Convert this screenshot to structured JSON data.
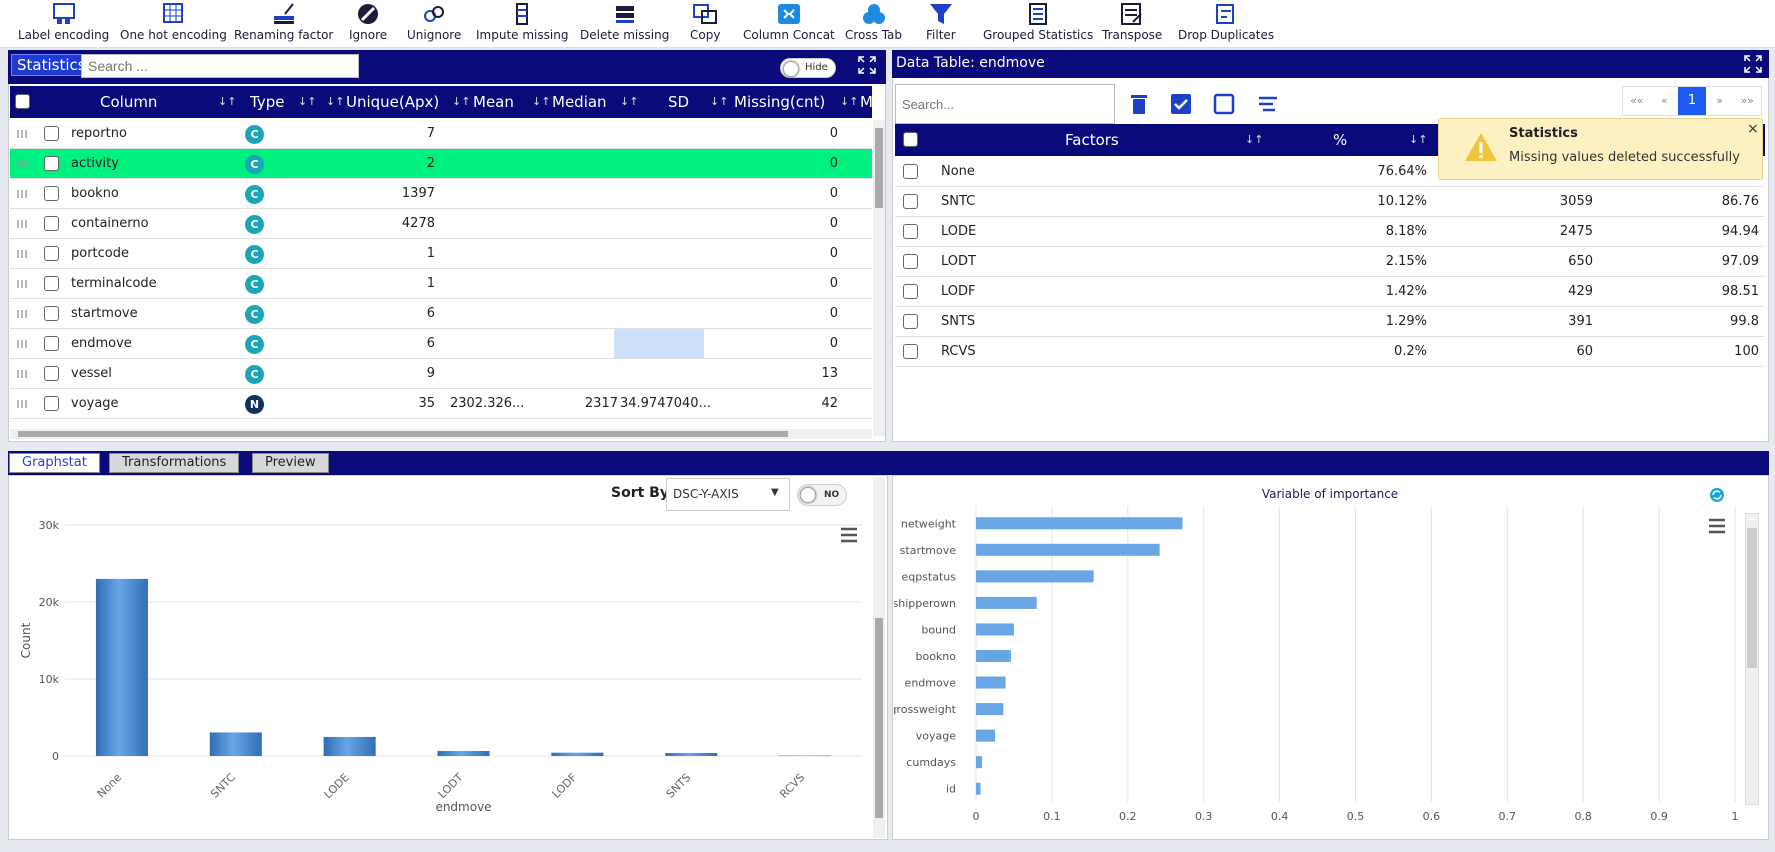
{
  "toolbar": {
    "buttons": [
      {
        "label": "Label encoding",
        "icon": "label-encoding-icon"
      },
      {
        "label": "One hot encoding",
        "icon": "one-hot-icon"
      },
      {
        "label": "Renaming factor",
        "icon": "rename-icon"
      },
      {
        "label": "Ignore",
        "icon": "ignore-icon"
      },
      {
        "label": "Unignore",
        "icon": "unignore-icon"
      },
      {
        "label": "Impute missing",
        "icon": "impute-icon"
      },
      {
        "label": "Delete missing",
        "icon": "delete-missing-icon"
      },
      {
        "label": "Copy",
        "icon": "copy-icon"
      },
      {
        "label": "Column Concat",
        "icon": "concat-icon"
      },
      {
        "label": "Cross Tab",
        "icon": "crosstab-icon"
      },
      {
        "label": "Filter",
        "icon": "filter-icon"
      },
      {
        "label": "Grouped Statistics",
        "icon": "grouped-stats-icon"
      },
      {
        "label": "Transpose",
        "icon": "transpose-icon"
      },
      {
        "label": "Drop Duplicates",
        "icon": "drop-duplicates-icon"
      }
    ]
  },
  "stats": {
    "tag": "Statistics",
    "search_placeholder": "Search ...",
    "hide_label": "Hide",
    "headers": {
      "column": "Column",
      "type": "Type",
      "unique": "Unique(Apx)",
      "mean": "Mean",
      "median": "Median",
      "sd": "SD",
      "missing": "Missing(cnt)",
      "more": "Mi"
    },
    "rows": [
      {
        "name": "reportno",
        "type": "C",
        "unique": "7",
        "mean": "",
        "median": "",
        "sd": "",
        "missing": "0"
      },
      {
        "name": "activity",
        "type": "C",
        "unique": "2",
        "mean": "",
        "median": "",
        "sd": "",
        "missing": "0"
      },
      {
        "name": "bookno",
        "type": "C",
        "unique": "1397",
        "mean": "",
        "median": "",
        "sd": "",
        "missing": "0"
      },
      {
        "name": "containerno",
        "type": "C",
        "unique": "4278",
        "mean": "",
        "median": "",
        "sd": "",
        "missing": "0"
      },
      {
        "name": "portcode",
        "type": "C",
        "unique": "1",
        "mean": "",
        "median": "",
        "sd": "",
        "missing": "0"
      },
      {
        "name": "terminalcode",
        "type": "C",
        "unique": "1",
        "mean": "",
        "median": "",
        "sd": "",
        "missing": "0"
      },
      {
        "name": "startmove",
        "type": "C",
        "unique": "6",
        "mean": "",
        "median": "",
        "sd": "",
        "missing": "0"
      },
      {
        "name": "endmove",
        "type": "C",
        "unique": "6",
        "mean": "",
        "median": "",
        "sd": "",
        "missing": "0"
      },
      {
        "name": "vessel",
        "type": "C",
        "unique": "9",
        "mean": "",
        "median": "",
        "sd": "",
        "missing": "13"
      },
      {
        "name": "voyage",
        "type": "N",
        "unique": "35",
        "mean": "2302.326...",
        "median": "2317",
        "sd": "34.9747040...",
        "missing": "42"
      }
    ]
  },
  "datatable": {
    "title": "Data Table: endmove",
    "search_placeholder": "Search...",
    "page": "1",
    "headers": {
      "factors": "Factors",
      "pct": "%"
    },
    "rows": [
      {
        "factor": "None",
        "pct": "76.64%",
        "count": "",
        "cum": ""
      },
      {
        "factor": "SNTC",
        "pct": "10.12%",
        "count": "3059",
        "cum": "86.76"
      },
      {
        "factor": "LODE",
        "pct": "8.18%",
        "count": "2475",
        "cum": "94.94"
      },
      {
        "factor": "LODT",
        "pct": "2.15%",
        "count": "650",
        "cum": "97.09"
      },
      {
        "factor": "LODF",
        "pct": "1.42%",
        "count": "429",
        "cum": "98.51"
      },
      {
        "factor": "SNTS",
        "pct": "1.29%",
        "count": "391",
        "cum": "99.8"
      },
      {
        "factor": "RCVS",
        "pct": "0.2%",
        "count": "60",
        "cum": "100"
      }
    ]
  },
  "toast": {
    "title": "Statistics",
    "message": "Missing values deleted successfully"
  },
  "tabs": [
    "Graphstat",
    "Transformations",
    "Preview"
  ],
  "sort": {
    "label": "Sort By:",
    "value": "DSC-Y-AXIS",
    "toggle": "NO"
  },
  "colors": {
    "accent": "#0a0a7a",
    "highlight": "#00f080",
    "bar_left": "#2f6db5",
    "bar_right": "#6aa6e6"
  },
  "chart_data": [
    {
      "type": "bar",
      "title": "",
      "xlabel": "endmove",
      "ylabel": "Count",
      "categories": [
        "None",
        "SNTC",
        "LODE",
        "LODT",
        "LODF",
        "SNTS",
        "RCVS"
      ],
      "values": [
        23000,
        3059,
        2475,
        650,
        429,
        391,
        60
      ],
      "ylim": [
        0,
        30000
      ],
      "yticks": [
        "0",
        "10k",
        "20k",
        "30k"
      ]
    },
    {
      "type": "bar",
      "title": "Variable of importance",
      "categories": [
        "netweight",
        "startmove",
        "eqpstatus",
        "shipperown",
        "bound",
        "bookno",
        "endmove",
        "grossweight",
        "voyage",
        "cumdays",
        "id"
      ],
      "values": [
        0.272,
        0.242,
        0.155,
        0.08,
        0.05,
        0.046,
        0.039,
        0.036,
        0.025,
        0.008,
        0.006
      ],
      "xlim": [
        0,
        1
      ],
      "xticks": [
        "0",
        "0.1",
        "0.2",
        "0.3",
        "0.4",
        "0.5",
        "0.6",
        "0.7",
        "0.8",
        "0.9",
        "1"
      ]
    }
  ]
}
